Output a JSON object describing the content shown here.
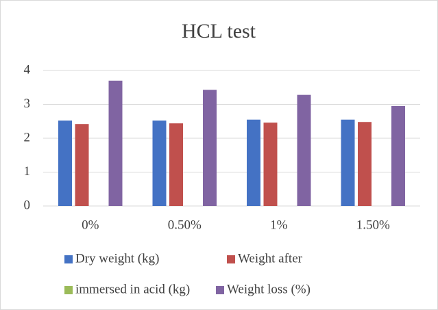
{
  "chart_data": {
    "type": "bar",
    "title": "HCL test",
    "categories": [
      "0%",
      "0.50%",
      "1%",
      "1.50%"
    ],
    "series": [
      {
        "name": "Dry weight (kg)",
        "color": "#4472c4",
        "values": [
          2.52,
          2.52,
          2.55,
          2.55
        ]
      },
      {
        "name": "Weight after",
        "color": "#c0504d",
        "values": [
          2.42,
          2.44,
          2.46,
          2.48
        ]
      },
      {
        "name": "immersed in acid (kg)",
        "color": "#9bbb59",
        "values": [
          null,
          null,
          null,
          null
        ]
      },
      {
        "name": "Weight loss (%)",
        "color": "#8064a2",
        "values": [
          3.7,
          3.43,
          3.28,
          2.95
        ]
      }
    ],
    "ylim": [
      0,
      4
    ],
    "yticks": [
      0,
      1,
      2,
      3,
      4
    ],
    "grid": true,
    "legend": "bottom"
  }
}
